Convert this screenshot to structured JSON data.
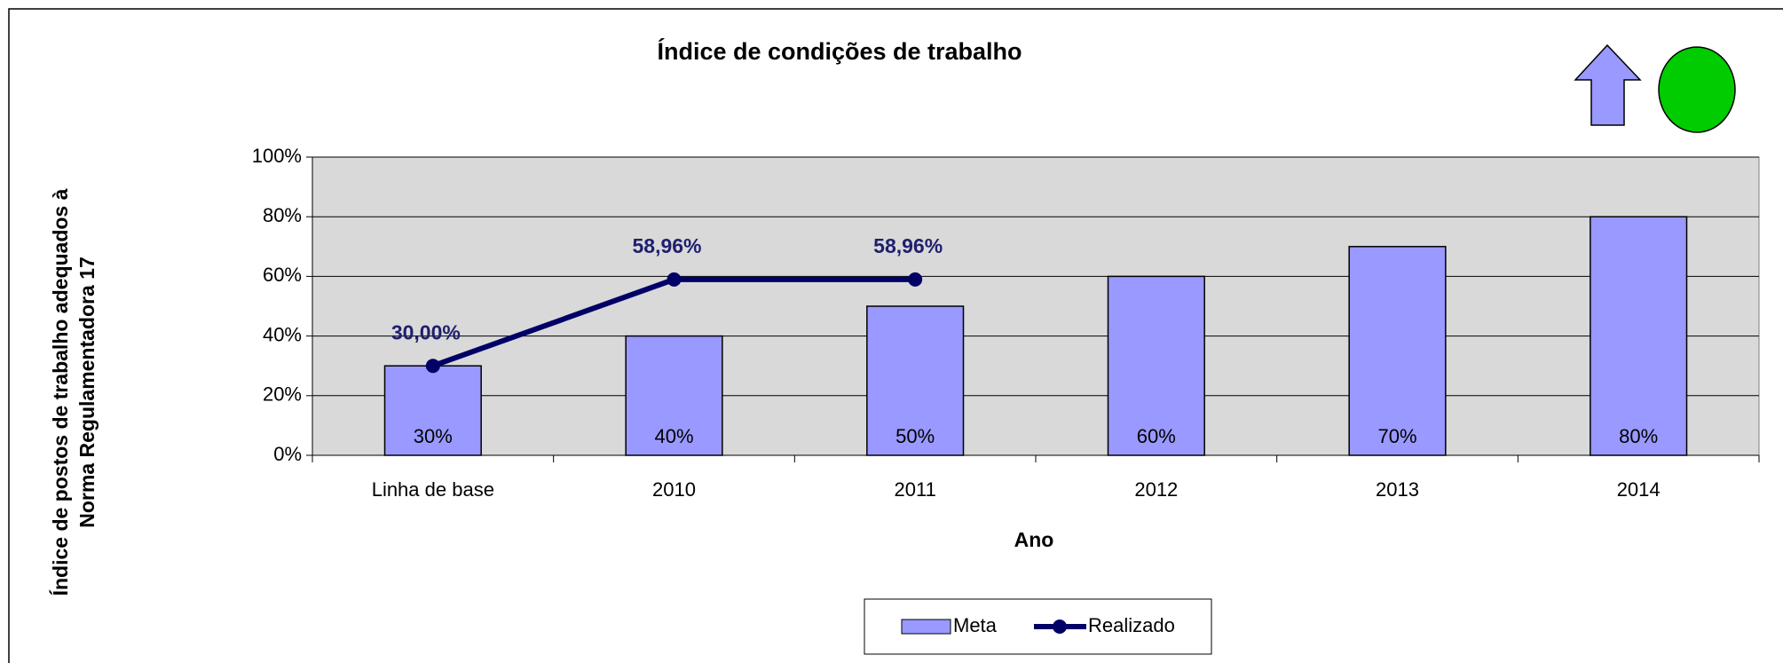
{
  "chart_data": {
    "type": "bar",
    "title": "Índice de condições de trabalho",
    "xlabel": "Ano",
    "ylabel": [
      "Índice de postos de trabalho adequados à",
      "Norma Regulamentadora 17"
    ],
    "categories": [
      "Linha de base",
      "2010",
      "2011",
      "2012",
      "2013",
      "2014"
    ],
    "series": [
      {
        "name": "Meta",
        "type": "bar",
        "color": "#9999ff",
        "values": [
          30,
          40,
          50,
          60,
          70,
          80
        ],
        "value_labels": [
          "30%",
          "40%",
          "50%",
          "60%",
          "70%",
          "80%"
        ]
      },
      {
        "name": "Realizado",
        "type": "line",
        "color": "#000066",
        "values": [
          30,
          58.96,
          58.96,
          null,
          null,
          null
        ],
        "value_labels": [
          "30,00%",
          "58,96%",
          "58,96%",
          null,
          null,
          null
        ]
      }
    ],
    "ylim": [
      0,
      100
    ],
    "yticks": [
      {
        "value": 0,
        "label": "0%"
      },
      {
        "value": 20,
        "label": "20%"
      },
      {
        "value": 40,
        "label": "40%"
      },
      {
        "value": 60,
        "label": "60%"
      },
      {
        "value": 80,
        "label": "80%"
      },
      {
        "value": 100,
        "label": "100%"
      }
    ],
    "grid": true,
    "legend": "bottom"
  }
}
